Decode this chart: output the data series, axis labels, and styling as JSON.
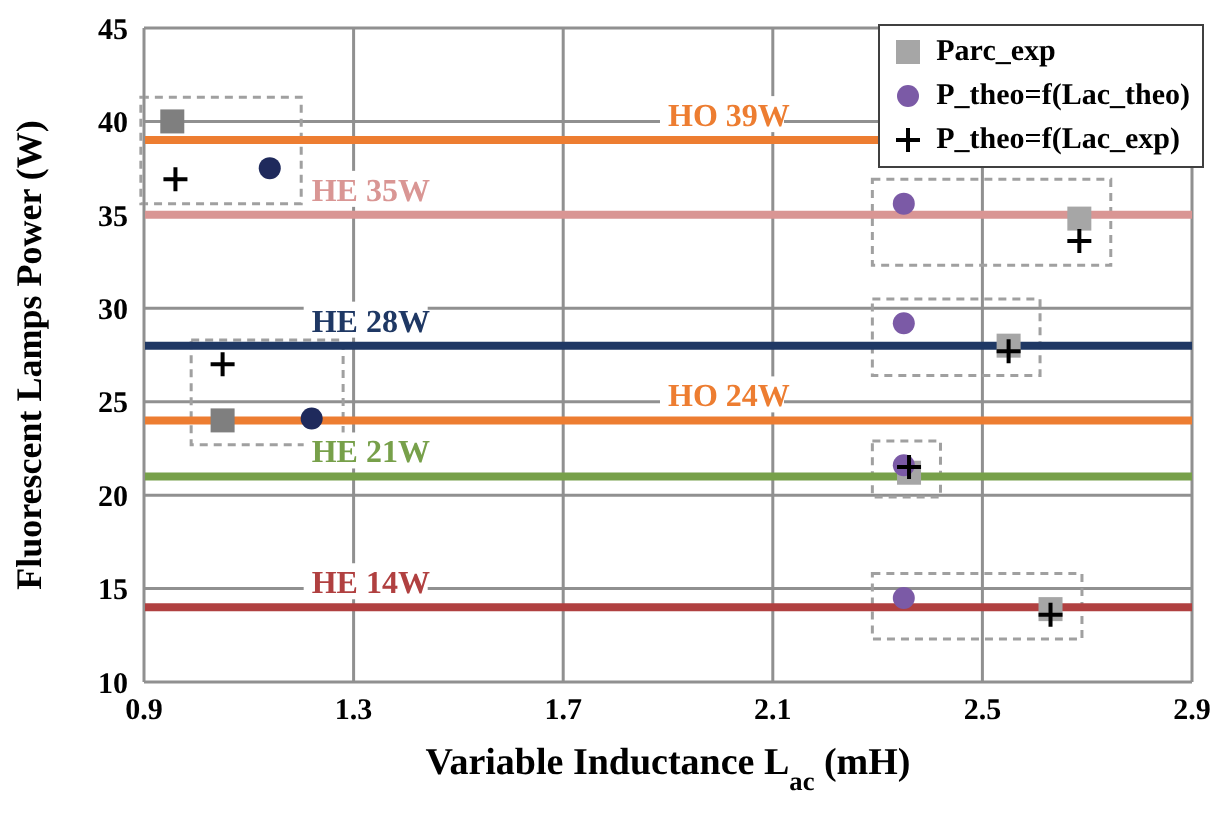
{
  "chart_data": {
    "type": "scatter",
    "xlabel": "Variable Inductance L$_{ac}$ (mH)",
    "ylabel": "Fluorescent Lamps Power (W)",
    "xlim": [
      0.9,
      2.9
    ],
    "xticks": [
      0.9,
      1.3,
      1.7,
      2.1,
      2.5,
      2.9
    ],
    "ylim": [
      10,
      45
    ],
    "yticks": [
      10,
      15,
      20,
      25,
      30,
      35,
      40,
      45
    ],
    "grid": true,
    "legend": "top right",
    "series": [
      {
        "name": "Parc_exp",
        "color": "#a6a6a6",
        "colors": [
          "#7f7f7f",
          "#7f7f7f",
          "#a6a6a6",
          "#a6a6a6",
          "#a6a6a6",
          "#a6a6a6"
        ],
        "marker": "square",
        "x": [
          0.954,
          1.05,
          2.685,
          2.55,
          2.36,
          2.63
        ],
        "values": [
          40.0,
          24.0,
          34.8,
          28.0,
          21.2,
          13.9
        ]
      },
      {
        "name": "P_theo=f(Lac_theo)",
        "color": "#7b5aa6",
        "colors": [
          "#1f2a5c",
          "#1f2a5c",
          "#7b5aa6",
          "#7b5aa6",
          "#7b5aa6",
          "#7b5aa6"
        ],
        "marker": "circle",
        "x": [
          1.14,
          1.22,
          2.35,
          2.35,
          2.35,
          2.35
        ],
        "values": [
          37.5,
          24.1,
          35.6,
          29.2,
          21.6,
          14.5
        ]
      },
      {
        "name": "P_theo=f(Lac_exp)",
        "color": "#000000",
        "marker": "cross",
        "x": [
          0.96,
          1.05,
          2.685,
          2.55,
          2.36,
          2.63
        ],
        "values": [
          36.9,
          27.0,
          33.6,
          27.7,
          21.5,
          13.6
        ]
      }
    ],
    "ref_lines": [
      {
        "axis": "y",
        "value": 39,
        "label": "HO 39W",
        "color": "#ed7d31"
      },
      {
        "axis": "y",
        "value": 35,
        "label": "HE 35W",
        "color": "#d99694"
      },
      {
        "axis": "y",
        "value": 28,
        "label": "HE 28W",
        "color": "#1f3864"
      },
      {
        "axis": "y",
        "value": 24,
        "label": "HO 24W",
        "color": "#ed7d31"
      },
      {
        "axis": "y",
        "value": 21,
        "label": "HE 21W",
        "color": "#77a04a"
      },
      {
        "axis": "y",
        "value": 14,
        "label": "HE 14W",
        "color": "#b04040"
      }
    ]
  }
}
